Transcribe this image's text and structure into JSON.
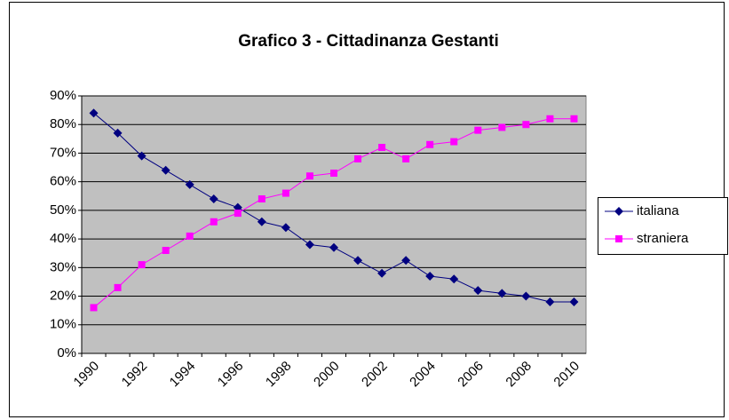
{
  "chart_data": {
    "type": "line",
    "title": "Grafico 3 - Cittadinanza Gestanti",
    "categories": [
      "1990",
      null,
      "1992",
      null,
      "1994",
      null,
      "1996",
      null,
      "1998",
      null,
      "2000",
      null,
      "2002",
      null,
      "2004",
      null,
      "2006",
      null,
      "2008",
      null,
      "2010"
    ],
    "series": [
      {
        "name": "italiana",
        "color": "#000080",
        "marker": "diamond",
        "values": [
          84,
          77,
          69,
          64,
          59,
          54,
          51,
          46,
          44,
          38,
          37,
          32.5,
          28,
          32.5,
          27,
          26,
          22,
          21,
          20,
          18,
          18
        ]
      },
      {
        "name": "straniera",
        "color": "#ff00ff",
        "marker": "square",
        "values": [
          16,
          23,
          31,
          36,
          41,
          46,
          49,
          54,
          56,
          62,
          63,
          68,
          72,
          68,
          73,
          74,
          78,
          79,
          80,
          82,
          82
        ]
      }
    ],
    "ylim": [
      0,
      90
    ],
    "yticks": [
      {
        "value": 0,
        "label": "0%"
      },
      {
        "value": 10,
        "label": "10%"
      },
      {
        "value": 20,
        "label": "20%"
      },
      {
        "value": 30,
        "label": "30%"
      },
      {
        "value": 40,
        "label": "40%"
      },
      {
        "value": 50,
        "label": "50%"
      },
      {
        "value": 60,
        "label": "60%"
      },
      {
        "value": 70,
        "label": "70%"
      },
      {
        "value": 80,
        "label": "80%"
      },
      {
        "value": 90,
        "label": "90%"
      }
    ],
    "grid": true,
    "legend": "right",
    "plot_background": "#c0c0c0"
  }
}
